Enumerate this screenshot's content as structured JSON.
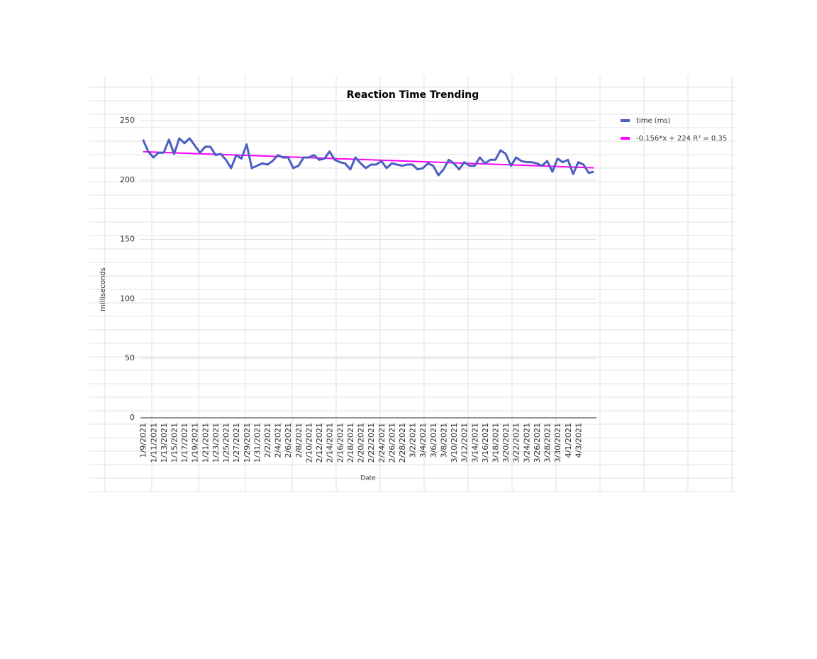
{
  "chart_data": {
    "type": "line",
    "title": "Reaction Time Trending",
    "x_label": "Date",
    "y_label": "milliseconds",
    "categories": [
      "1/9/2021",
      null,
      "1/11/2021",
      null,
      "1/13/2021",
      null,
      "1/15/2021",
      null,
      "1/17/2021",
      null,
      "1/19/2021",
      null,
      "1/21/2021",
      null,
      "1/23/2021",
      null,
      "1/25/2021",
      null,
      "1/27/2021",
      null,
      "1/29/2021",
      null,
      "1/31/2021",
      null,
      "2/2/2021",
      null,
      "2/4/2021",
      null,
      "2/6/2021",
      null,
      "2/8/2021",
      null,
      "2/10/2021",
      null,
      "2/12/2021",
      null,
      "2/14/2021",
      null,
      "2/16/2021",
      null,
      "2/18/2021",
      null,
      "2/20/2021",
      null,
      "2/22/2021",
      null,
      "2/24/2021",
      null,
      "2/26/2021",
      null,
      "2/28/2021",
      null,
      "3/2/2021",
      null,
      "3/4/2021",
      null,
      "3/6/2021",
      null,
      "3/8/2021",
      null,
      "3/10/2021",
      null,
      "3/12/2021",
      null,
      "3/14/2021",
      null,
      "3/16/2021",
      null,
      "3/18/2021",
      null,
      "3/20/2021",
      null,
      "3/22/2021",
      null,
      "3/24/2021",
      null,
      "3/26/2021",
      null,
      "3/28/2021",
      null,
      "3/30/2021",
      null,
      "4/1/2021",
      null,
      "4/3/2021",
      null,
      null,
      null
    ],
    "series": [
      {
        "name": "time (ms)",
        "color": "#4a5fc1",
        "values": [
          234,
          224,
          219,
          223,
          223,
          234,
          222,
          235,
          231,
          235,
          229,
          223,
          228,
          228,
          221,
          222,
          217,
          210,
          221,
          218,
          230,
          210,
          212,
          214,
          213,
          216,
          221,
          219,
          219,
          210,
          212,
          219,
          219,
          221,
          217,
          218,
          224,
          217,
          215,
          214,
          209,
          219,
          214,
          210,
          213,
          213,
          216,
          210,
          214,
          213,
          212,
          213,
          213,
          209,
          210,
          214,
          212,
          204,
          209,
          217,
          214,
          209,
          215,
          212,
          212,
          219,
          214,
          217,
          217,
          225,
          222,
          212,
          219,
          216,
          215,
          215,
          214,
          212,
          216,
          207,
          218,
          215,
          217,
          205,
          215,
          213,
          206,
          207
        ]
      }
    ],
    "trendline": {
      "name": "-0.156*x + 224 R² = 0.35",
      "color": "#ff00ff",
      "slope": -0.156,
      "intercept": 224
    },
    "ylim": [
      0,
      250
    ],
    "yticks": [
      0,
      50,
      100,
      150,
      200,
      250
    ],
    "grid": true
  }
}
